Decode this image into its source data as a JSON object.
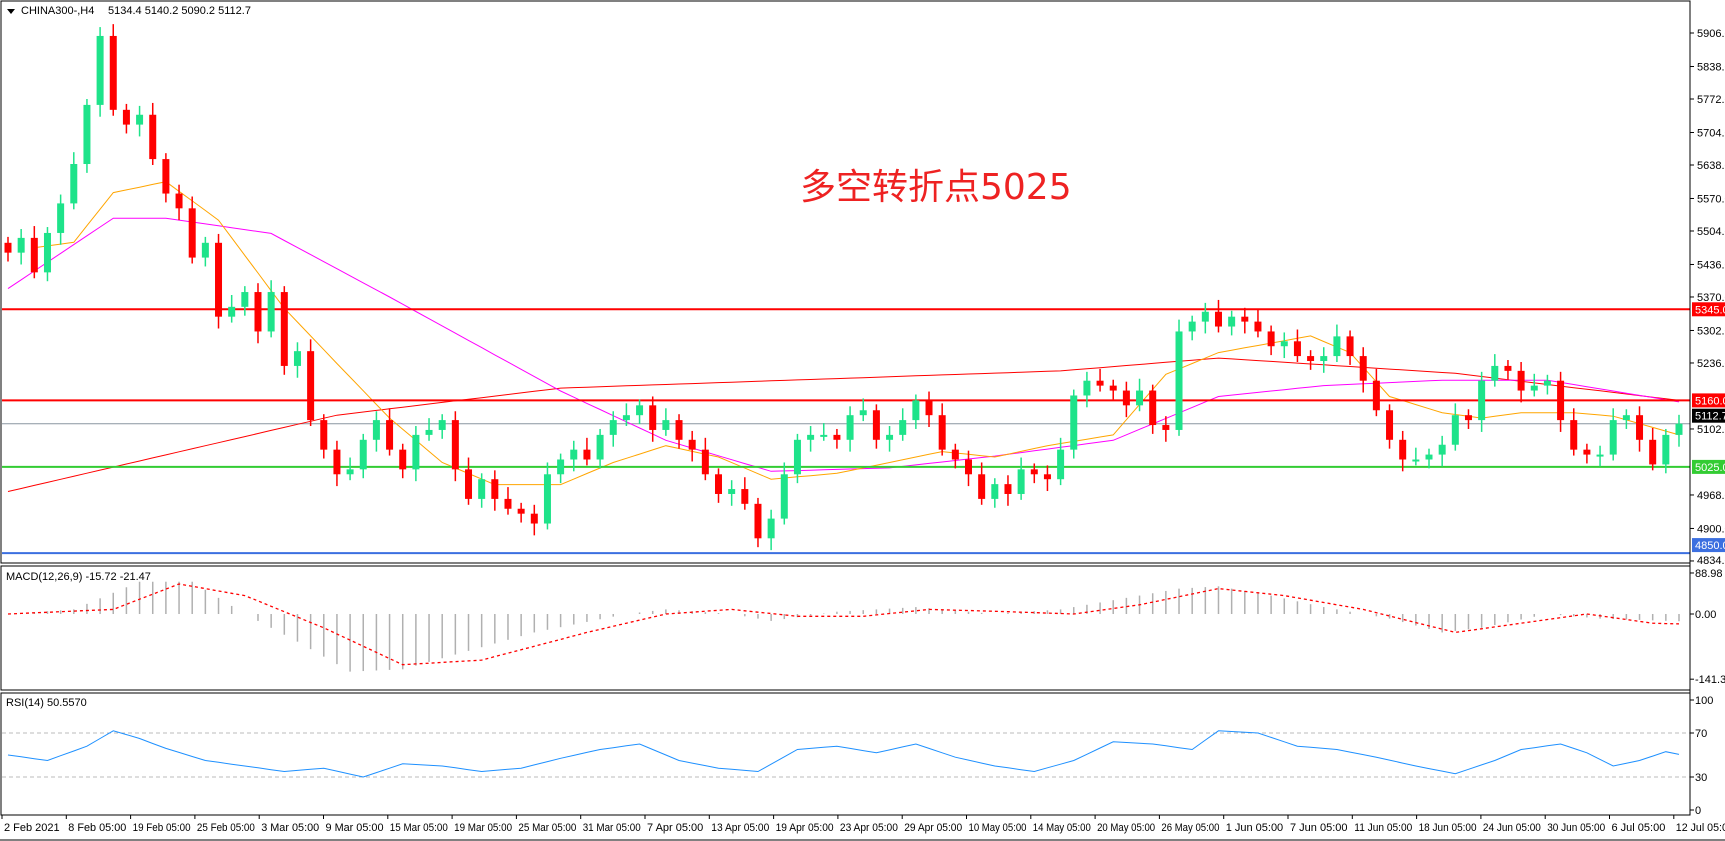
{
  "header": {
    "symbol_timeframe": "CHINA300-,H4",
    "ohlc": "5134.4 5140.2 5090.2 5112.7"
  },
  "annotation": "多空转折点5025",
  "colors": {
    "bull": "#1ee38a",
    "bear": "#ff0000",
    "ma_slow": "#ff0000",
    "ma_mid": "#ff00ff",
    "ma_fast": "#ffa500",
    "level_resistance": "#ff0000",
    "level_support": "#33cc33",
    "level_low": "#3b6fe0",
    "rsi": "#1e90ff",
    "macd_hist": "#b0b0b0",
    "macd_signal": "#ff0000"
  },
  "chart_data": [
    {
      "type": "candlestick",
      "title": "CHINA300-,H4",
      "y_ticks": [
        "5906.0",
        "5838.0",
        "5772.0",
        "5704.0",
        "5638.0",
        "5570.0",
        "5504.0",
        "5436.0",
        "5370.0",
        "5302.0",
        "5236.0",
        "5102.0",
        "4968.0",
        "4900.0",
        "4834.0"
      ],
      "ylim": [
        4834,
        5950
      ],
      "x_ticks": [
        "2 Feb 2021",
        "8 Feb 05:00",
        "19 Feb 05:00",
        "25 Feb 05:00",
        "3 Mar 05:00",
        "9 Mar 05:00",
        "15 Mar 05:00",
        "19 Mar 05:00",
        "25 Mar 05:00",
        "31 Mar 05:00",
        "7 Apr 05:00",
        "13 Apr 05:00",
        "19 Apr 05:00",
        "23 Apr 05:00",
        "29 Apr 05:00",
        "10 May 05:00",
        "14 May 05:00",
        "20 May 05:00",
        "26 May 05:00",
        "1 Jun 05:00",
        "7 Jun 05:00",
        "11 Jun 05:00",
        "18 Jun 05:00",
        "24 Jun 05:00",
        "30 Jun 05:00",
        "6 Jul 05:00",
        "12 Jul 05:00"
      ],
      "close": [
        5460,
        5490,
        5420,
        5500,
        5560,
        5640,
        5760,
        5900,
        5750,
        5720,
        5740,
        5650,
        5580,
        5550,
        5450,
        5480,
        5330,
        5350,
        5380,
        5300,
        5380,
        5230,
        5260,
        5120,
        5060,
        5010,
        5020,
        5080,
        5120,
        5060,
        5020,
        5090,
        5100,
        5120,
        5020,
        4960,
        5000,
        4960,
        4940,
        4930,
        4910,
        5010,
        5040,
        5060,
        5040,
        5090,
        5120,
        5130,
        5150,
        5100,
        5120,
        5080,
        5060,
        5010,
        4970,
        4980,
        4950,
        4880,
        4920,
        5010,
        5080,
        5090,
        5090,
        5080,
        5130,
        5140,
        5080,
        5090,
        5120,
        5160,
        5130,
        5060,
        5040,
        5010,
        4960,
        4990,
        4970,
        5020,
        5010,
        5000,
        5060,
        5170,
        5200,
        5190,
        5180,
        5150,
        5180,
        5110,
        5100,
        5300,
        5320,
        5340,
        5310,
        5330,
        5320,
        5300,
        5270,
        5280,
        5250,
        5240,
        5250,
        5290,
        5250,
        5200,
        5140,
        5080,
        5040,
        5040,
        5050,
        5070,
        5130,
        5120,
        5200,
        5230,
        5220,
        5180,
        5190,
        5200,
        5120,
        5060,
        5050,
        5050,
        5120,
        5130,
        5080,
        5030,
        5090,
        5112.7
      ],
      "moving_averages": {
        "slow": [
          [
            0,
            4975
          ],
          [
            25,
            5130
          ],
          [
            42,
            5185
          ],
          [
            80,
            5220
          ],
          [
            92,
            5246
          ],
          [
            110,
            5215
          ],
          [
            127,
            5160
          ]
        ],
        "mid": [
          [
            0,
            5387
          ],
          [
            8,
            5530
          ],
          [
            12,
            5530
          ],
          [
            20,
            5499
          ],
          [
            29,
            5370
          ],
          [
            42,
            5179
          ],
          [
            50,
            5079
          ],
          [
            58,
            5016
          ],
          [
            67,
            5023
          ],
          [
            75,
            5047
          ],
          [
            84,
            5079
          ],
          [
            92,
            5168
          ],
          [
            100,
            5190
          ],
          [
            109,
            5201
          ],
          [
            117,
            5201
          ],
          [
            127,
            5157
          ]
        ],
        "fast": [
          [
            2,
            5470
          ],
          [
            5,
            5481
          ],
          [
            8,
            5582
          ],
          [
            12,
            5604
          ],
          [
            16,
            5526
          ],
          [
            21,
            5347
          ],
          [
            25,
            5235
          ],
          [
            29,
            5124
          ],
          [
            33,
            5034
          ],
          [
            37,
            4989
          ],
          [
            42,
            4989
          ],
          [
            46,
            5034
          ],
          [
            50,
            5068
          ],
          [
            54,
            5045
          ],
          [
            58,
            5000
          ],
          [
            63,
            5012
          ],
          [
            67,
            5034
          ],
          [
            71,
            5056
          ],
          [
            75,
            5045
          ],
          [
            79,
            5068
          ],
          [
            84,
            5090
          ],
          [
            88,
            5213
          ],
          [
            92,
            5257
          ],
          [
            99,
            5291
          ],
          [
            102,
            5257
          ],
          [
            105,
            5168
          ],
          [
            109,
            5135
          ],
          [
            112,
            5124
          ],
          [
            115,
            5135
          ],
          [
            119,
            5135
          ],
          [
            122,
            5128
          ],
          [
            127,
            5090
          ]
        ]
      },
      "levels": [
        {
          "value": 5345.0,
          "label": "5345.0",
          "kind": "resistance"
        },
        {
          "value": 5160.0,
          "label": "5160.0",
          "kind": "resistance"
        },
        {
          "value": 5025.0,
          "label": "5025.0",
          "kind": "support"
        },
        {
          "value": 4850.0,
          "label": "4850.0",
          "kind": "low"
        }
      ],
      "current_price": {
        "value": 5112.7,
        "label": "5112.7"
      }
    },
    {
      "type": "bar+line",
      "title": "MACD(12,26,9) -15.72 -21.47",
      "y_ticks": [
        "88.98",
        "0.00",
        "-141.39"
      ],
      "ylim": [
        -141.39,
        88.98
      ],
      "histogram": [
        [
          0,
          0
        ],
        [
          5,
          10
        ],
        [
          10,
          70
        ],
        [
          14,
          70
        ],
        [
          18,
          0
        ],
        [
          22,
          -60
        ],
        [
          26,
          -125
        ],
        [
          30,
          -120
        ],
        [
          35,
          -80
        ],
        [
          40,
          -40
        ],
        [
          47,
          0
        ],
        [
          50,
          10
        ],
        [
          55,
          0
        ],
        [
          58,
          -15
        ],
        [
          63,
          5
        ],
        [
          69,
          15
        ],
        [
          75,
          0
        ],
        [
          80,
          10
        ],
        [
          84,
          30
        ],
        [
          89,
          55
        ],
        [
          92,
          60
        ],
        [
          96,
          40
        ],
        [
          100,
          15
        ],
        [
          105,
          -10
        ],
        [
          109,
          -40
        ],
        [
          112,
          -30
        ],
        [
          117,
          0
        ],
        [
          121,
          -10
        ],
        [
          127,
          -15.72
        ]
      ],
      "signal": [
        [
          0,
          0
        ],
        [
          8,
          10
        ],
        [
          13,
          65
        ],
        [
          18,
          40
        ],
        [
          24,
          -30
        ],
        [
          30,
          -110
        ],
        [
          36,
          -100
        ],
        [
          44,
          -40
        ],
        [
          50,
          0
        ],
        [
          55,
          10
        ],
        [
          60,
          -5
        ],
        [
          65,
          -5
        ],
        [
          70,
          10
        ],
        [
          76,
          5
        ],
        [
          81,
          0
        ],
        [
          86,
          20
        ],
        [
          92,
          55
        ],
        [
          97,
          40
        ],
        [
          103,
          10
        ],
        [
          110,
          -40
        ],
        [
          115,
          -20
        ],
        [
          120,
          0
        ],
        [
          125,
          -20
        ],
        [
          127,
          -21.47
        ]
      ]
    },
    {
      "type": "line",
      "title": "RSI(14) 50.5570",
      "y_ticks": [
        "100",
        "70",
        "30",
        "0"
      ],
      "ylim": [
        0,
        100
      ],
      "levels": [
        70,
        30
      ],
      "values": [
        [
          0,
          50
        ],
        [
          3,
          45
        ],
        [
          6,
          58
        ],
        [
          8,
          72
        ],
        [
          10,
          65
        ],
        [
          12,
          56
        ],
        [
          15,
          45
        ],
        [
          18,
          40
        ],
        [
          21,
          35
        ],
        [
          24,
          38
        ],
        [
          27,
          30
        ],
        [
          30,
          42
        ],
        [
          33,
          40
        ],
        [
          36,
          35
        ],
        [
          39,
          38
        ],
        [
          42,
          47
        ],
        [
          45,
          55
        ],
        [
          48,
          60
        ],
        [
          51,
          45
        ],
        [
          54,
          38
        ],
        [
          57,
          35
        ],
        [
          60,
          55
        ],
        [
          63,
          58
        ],
        [
          66,
          52
        ],
        [
          69,
          60
        ],
        [
          72,
          48
        ],
        [
          75,
          40
        ],
        [
          78,
          35
        ],
        [
          81,
          45
        ],
        [
          84,
          62
        ],
        [
          87,
          60
        ],
        [
          90,
          55
        ],
        [
          92,
          72
        ],
        [
          95,
          70
        ],
        [
          98,
          58
        ],
        [
          101,
          55
        ],
        [
          104,
          48
        ],
        [
          107,
          40
        ],
        [
          110,
          33
        ],
        [
          113,
          45
        ],
        [
          115,
          55
        ],
        [
          118,
          60
        ],
        [
          120,
          52
        ],
        [
          122,
          40
        ],
        [
          124,
          45
        ],
        [
          126,
          53
        ],
        [
          127,
          50.557
        ]
      ]
    }
  ]
}
